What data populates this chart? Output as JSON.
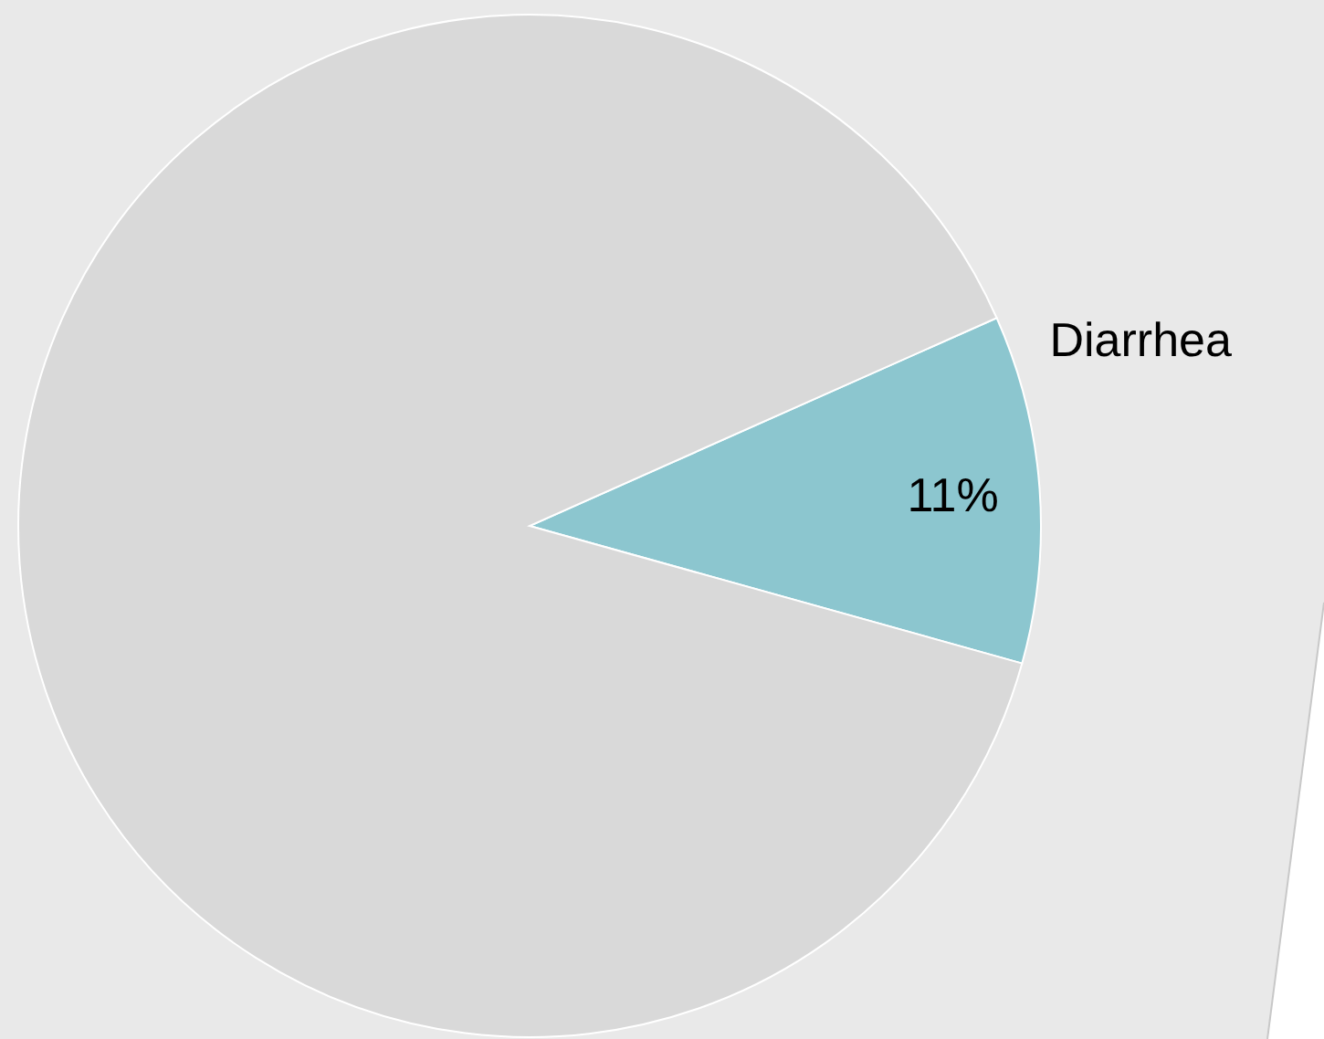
{
  "chart_data": {
    "type": "pie",
    "categories": [
      "Diarrhea",
      null
    ],
    "values": [
      11,
      89
    ],
    "colors": [
      "#8cc6cf",
      "#d9d9d9"
    ],
    "value_labels": [
      "11%",
      null
    ]
  }
}
